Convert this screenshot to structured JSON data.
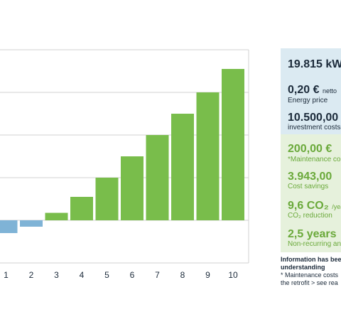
{
  "chart_data": {
    "type": "bar",
    "categories": [
      "1",
      "2",
      "3",
      "4",
      "5",
      "6",
      "7",
      "8",
      "9",
      "10"
    ],
    "values": [
      -0.6,
      -0.3,
      0.35,
      1.1,
      2.0,
      3.0,
      4.0,
      5.0,
      6.0,
      7.1
    ],
    "ylim": [
      -2,
      8
    ],
    "grid": true,
    "colors": {
      "positive": "#79bd4b",
      "negative": "#7fb3d6",
      "grid": "#d0d0d0",
      "axis": "#888888"
    }
  },
  "info_cards": [
    {
      "value": "19.815 kW",
      "label": "",
      "theme": "blue"
    },
    {
      "value": "0,20 €",
      "value_suffix": "netto",
      "label": "Energy price",
      "theme": "blue"
    },
    {
      "value": "10.500,00",
      "label": "investment costs",
      "theme": "blue"
    },
    {
      "value": "200,00 €",
      "label": "*Maintenance co",
      "theme": "green"
    },
    {
      "value": "3.943,00",
      "label": "Cost savings",
      "theme": "green"
    },
    {
      "value": "9,6 CO₂",
      "value_suffix": "/year",
      "label": "CO₂ reduction",
      "theme": "green"
    },
    {
      "value": "2,5 years",
      "label": "Non-recurring an",
      "theme": "green"
    }
  ],
  "note": {
    "title_line1": "Information has bee",
    "title_line2": "understanding",
    "line3": "* Maintenance costs",
    "line4": "the retrofit > see rea"
  }
}
